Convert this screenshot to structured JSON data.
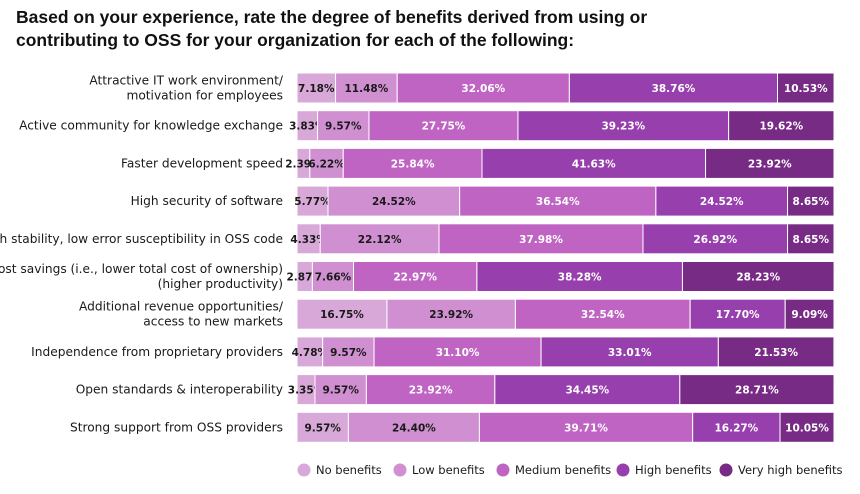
{
  "title": {
    "line1": "Based on your experience, rate the degree of benefits derived from using or",
    "line2": "contributing to OSS for your organization for each of the following:"
  },
  "chart_data": {
    "type": "bar",
    "orientation": "horizontal",
    "stacked": true,
    "categories": [
      [
        "Attractive IT work environment/",
        "motivation for employees"
      ],
      [
        "Active community for knowledge exchange"
      ],
      [
        "Faster development speed"
      ],
      [
        "High security of software"
      ],
      [
        "High stability, low error susceptibility in OSS code"
      ],
      [
        "Cost savings (i.e., lower total cost of ownership)",
        "(higher productivity)"
      ],
      [
        "Additional revenue opportunities/",
        "access to new markets"
      ],
      [
        "Independence from proprietary providers"
      ],
      [
        "Open standards & interoperability"
      ],
      [
        "Strong support from OSS providers"
      ]
    ],
    "series": [
      {
        "name": "No benefits",
        "color": "#d8a8d8",
        "label_color": "#1a1a1a",
        "values": [
          7.18,
          3.83,
          2.39,
          5.77,
          4.33,
          2.87,
          16.75,
          4.78,
          3.35,
          9.57
        ],
        "labels": [
          "7.18%",
          "3.83%",
          "2.39%",
          "5.77%",
          "4.33%",
          "2.87%",
          "16.75%",
          "4.78%",
          "3.35%",
          "9.57%"
        ]
      },
      {
        "name": "Low benefits",
        "color": "#cf8fd0",
        "label_color": "#1a1a1a",
        "values": [
          11.48,
          9.57,
          6.22,
          24.52,
          22.12,
          7.66,
          23.92,
          9.57,
          9.57,
          24.4
        ],
        "labels": [
          "11.48%",
          "9.57%",
          "6.22%",
          "24.52%",
          "22.12%",
          "7.66%",
          "23.92%",
          "9.57%",
          "9.57%",
          "24.40%"
        ]
      },
      {
        "name": "Medium benefits",
        "color": "#c064c3",
        "label_color": "#ffffff",
        "values": [
          32.06,
          27.75,
          25.84,
          36.54,
          37.98,
          22.97,
          32.54,
          31.1,
          23.92,
          39.71
        ],
        "labels": [
          "32.06%",
          "27.75%",
          "25.84%",
          "36.54%",
          "37.98%",
          "22.97%",
          "32.54%",
          "31.10%",
          "23.92%",
          "39.71%"
        ]
      },
      {
        "name": "High benefits",
        "color": "#9740ad",
        "label_color": "#ffffff",
        "values": [
          38.76,
          39.23,
          41.63,
          24.52,
          26.92,
          38.28,
          17.7,
          33.01,
          34.45,
          16.27
        ],
        "labels": [
          "38.76%",
          "39.23%",
          "41.63%",
          "24.52%",
          "26.92%",
          "38.28%",
          "17.70%",
          "33.01%",
          "34.45%",
          "16.27%"
        ]
      },
      {
        "name": "Very high benefits",
        "color": "#782b85",
        "label_color": "#ffffff",
        "values": [
          10.53,
          19.62,
          23.92,
          8.65,
          8.65,
          28.23,
          9.09,
          21.53,
          28.71,
          10.05
        ],
        "labels": [
          "10.53%",
          "19.62%",
          "23.92%",
          "8.65%",
          "8.65%",
          "28.23%",
          "9.09%",
          "21.53%",
          "28.71%",
          "10.05%"
        ]
      }
    ],
    "xlim": [
      0,
      100
    ],
    "legend": "bottom-right",
    "grid": false
  }
}
